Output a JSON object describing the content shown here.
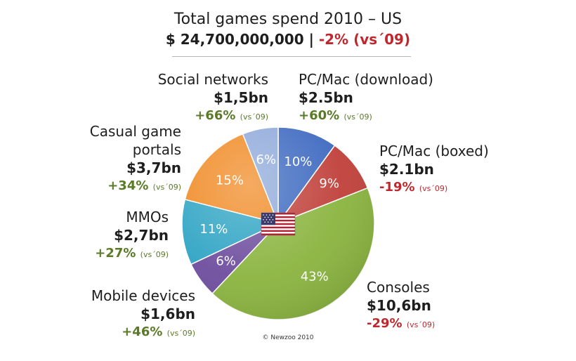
{
  "header": {
    "title": "Total games spend 2010 – US",
    "total": "$ 24,700,000,000 |",
    "change": "-2% (vs´09)"
  },
  "segments": [
    {
      "name": "PC/Mac (download)",
      "value": "$2.5bn",
      "change": "+60%",
      "vs": "(vs´09)",
      "color": "#3d69c0"
    },
    {
      "name": "PC/Mac (boxed)",
      "value": "$2.1bn",
      "change": "-19%",
      "vs": "(vs´09)",
      "color": "#c0403a"
    },
    {
      "name": "Consoles",
      "value": "$10,6bn",
      "change": "-29%",
      "vs": "(vs´09)",
      "color": "#8ab43f"
    },
    {
      "name": "Mobile devices",
      "value": "$1,6bn",
      "change": "+46%",
      "vs": "(vs´09)",
      "color": "#6e4d9e"
    },
    {
      "name": "MMOs",
      "value": "$2,7bn",
      "change": "+27%",
      "vs": "(vs´09)",
      "color": "#2fa4c4"
    },
    {
      "name_line1": "Casual game",
      "name_line2": "portals",
      "value": "$3,7bn",
      "change": "+34%",
      "vs": "(vs´09)",
      "color": "#f08a24"
    },
    {
      "name": "Social networks",
      "value": "$1,5bn",
      "change": "+66%",
      "vs": "(vs´09)",
      "color": "#8fa9da"
    }
  ],
  "chart_data": {
    "type": "pie",
    "title": "Total games spend 2010 – US",
    "categories": [
      "PC/Mac (download)",
      "PC/Mac (boxed)",
      "Consoles",
      "Mobile devices",
      "MMOs",
      "Casual game portals",
      "Social networks"
    ],
    "values": [
      10,
      9,
      43,
      6,
      11,
      15,
      6
    ],
    "value_labels": [
      "10%",
      "9%",
      "43%",
      "6%",
      "11%",
      "15%",
      "6%"
    ],
    "colors": [
      "#3d69c0",
      "#c0403a",
      "#8ab43f",
      "#6e4d9e",
      "#2fa4c4",
      "#f08a24",
      "#8fa9da"
    ],
    "start": "12 o'clock",
    "direction": "clockwise"
  },
  "footer": {
    "copyright": "© Newzoo 2010"
  }
}
